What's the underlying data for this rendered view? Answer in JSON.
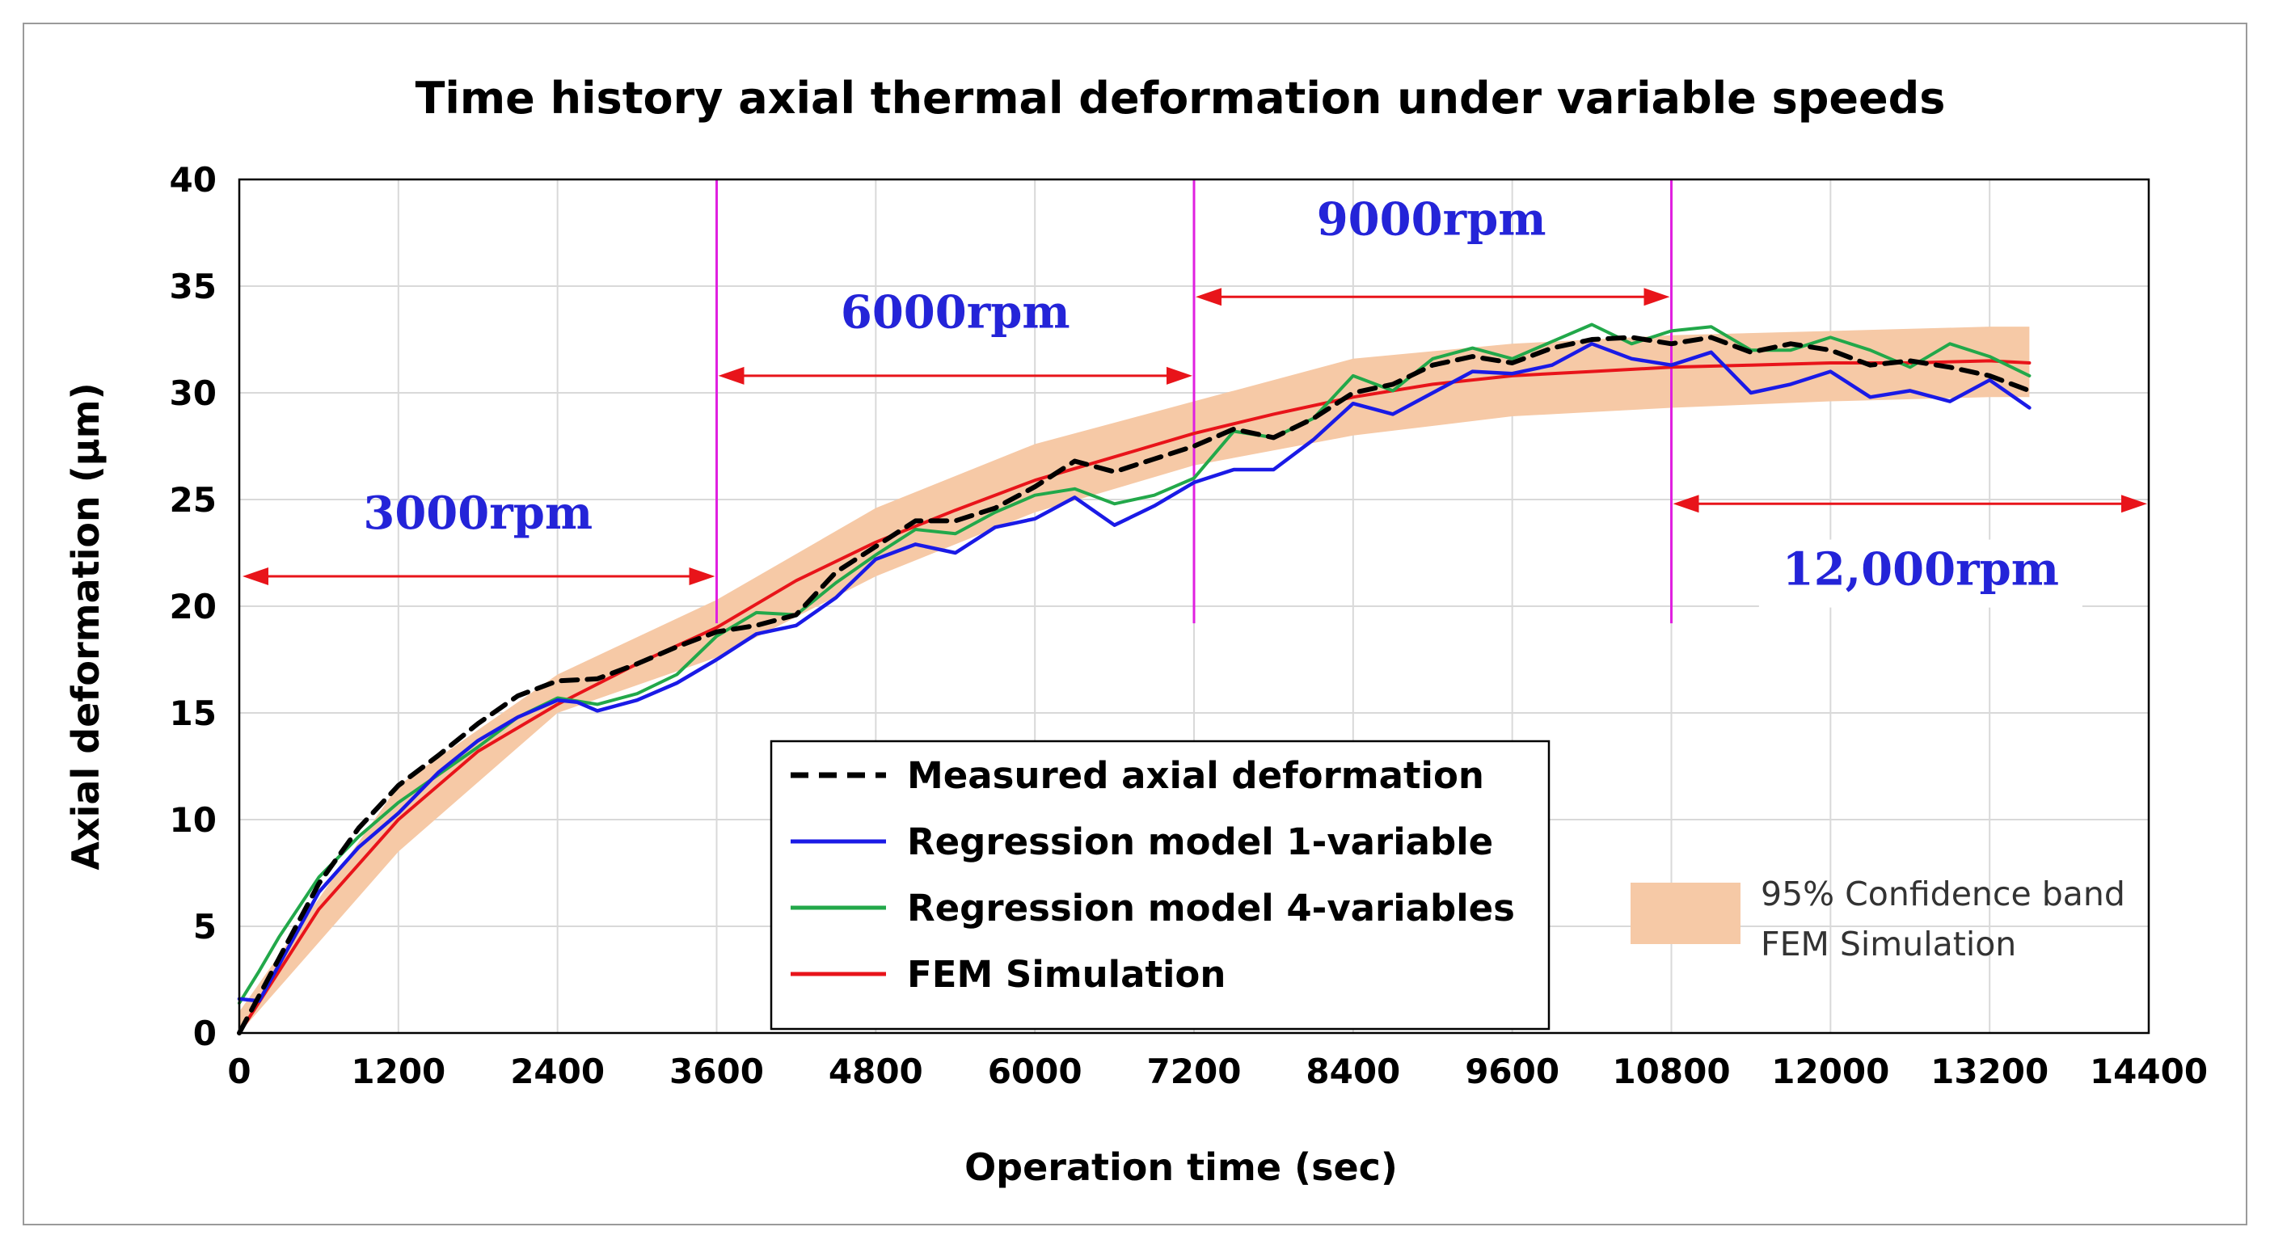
{
  "chart_data": {
    "type": "line",
    "title": "Time history axial thermal deformation under variable speeds",
    "xlabel": "Operation time (sec)",
    "ylabel": "Axial deformation (µm)",
    "xlim": [
      0,
      14400
    ],
    "ylim": [
      0,
      40
    ],
    "xticks": [
      0,
      1200,
      2400,
      3600,
      4800,
      6000,
      7200,
      8400,
      9600,
      10800,
      12000,
      13200,
      14400
    ],
    "yticks": [
      0,
      5,
      10,
      15,
      20,
      25,
      30,
      35,
      40
    ],
    "grid": true,
    "colors": {
      "measured": "#000000",
      "reg1": "#1a1ae6",
      "reg4": "#22a84a",
      "fem": "#e8141a",
      "band": "#f6c9a6",
      "divider": "#e020e0",
      "arrow": "#e8141a",
      "rpm_text": "#2424d8"
    },
    "speed_segments": [
      {
        "label": "3000rpm",
        "start": 0,
        "end": 3600
      },
      {
        "label": "6000rpm",
        "start": 3600,
        "end": 7200
      },
      {
        "label": "9000rpm",
        "start": 7200,
        "end": 10800
      },
      {
        "label": "12,000rpm",
        "start": 10800,
        "end": 14400
      }
    ],
    "dividers": [
      3600,
      7200,
      10800
    ],
    "confidence_band": {
      "name_line1": "95% Confidence band",
      "name_line2": "FEM Simulation",
      "x": [
        0,
        1200,
        2400,
        3600,
        4800,
        6000,
        7200,
        8400,
        9600,
        10800,
        12000,
        13200,
        13500
      ],
      "lower": [
        0,
        8.5,
        15.0,
        17.6,
        21.4,
        24.4,
        26.6,
        28.0,
        28.9,
        29.3,
        29.6,
        29.8,
        29.8
      ],
      "upper": [
        1.0,
        11.6,
        16.8,
        20.3,
        24.6,
        27.6,
        29.6,
        31.6,
        32.3,
        32.7,
        32.9,
        33.1,
        33.1
      ]
    },
    "series": [
      {
        "name": "Measured axial deformation",
        "key": "measured",
        "style": "dashed",
        "x": [
          0,
          300,
          600,
          900,
          1200,
          1500,
          1800,
          2100,
          2400,
          2700,
          3000,
          3300,
          3600,
          3900,
          4200,
          4500,
          4800,
          5100,
          5400,
          5700,
          6000,
          6300,
          6600,
          6900,
          7200,
          7500,
          7800,
          8100,
          8400,
          8700,
          9000,
          9300,
          9600,
          9900,
          10200,
          10500,
          10800,
          11100,
          11400,
          11700,
          12000,
          12300,
          12600,
          12900,
          13200,
          13500
        ],
        "y": [
          0.0,
          3.5,
          7.0,
          9.6,
          11.6,
          13.0,
          14.5,
          15.8,
          16.5,
          16.6,
          17.3,
          18.1,
          18.8,
          19.1,
          19.6,
          21.6,
          22.8,
          24.0,
          24.0,
          24.6,
          25.6,
          26.8,
          26.3,
          26.9,
          27.5,
          28.3,
          27.9,
          28.8,
          30.0,
          30.4,
          31.3,
          31.7,
          31.4,
          32.1,
          32.5,
          32.6,
          32.3,
          32.6,
          31.9,
          32.3,
          32.0,
          31.3,
          31.5,
          31.2,
          30.8,
          30.1
        ]
      },
      {
        "name": "Regression model 1-variable",
        "key": "reg1",
        "style": "solid",
        "x": [
          0,
          150,
          300,
          600,
          900,
          1200,
          1500,
          1800,
          2100,
          2400,
          2550,
          2700,
          3000,
          3300,
          3600,
          3900,
          4200,
          4500,
          4800,
          5100,
          5400,
          5700,
          6000,
          6300,
          6600,
          6900,
          7200,
          7500,
          7800,
          8100,
          8400,
          8700,
          9000,
          9300,
          9600,
          9900,
          10200,
          10500,
          10800,
          11100,
          11400,
          11700,
          12000,
          12300,
          12600,
          12900,
          13200,
          13500
        ],
        "y": [
          1.6,
          1.5,
          3.2,
          6.6,
          8.7,
          10.3,
          12.2,
          13.7,
          14.8,
          15.6,
          15.5,
          15.1,
          15.6,
          16.4,
          17.5,
          18.7,
          19.1,
          20.4,
          22.2,
          22.9,
          22.5,
          23.7,
          24.1,
          25.1,
          23.8,
          24.7,
          25.8,
          26.4,
          26.4,
          27.8,
          29.5,
          29.0,
          30.0,
          31.0,
          30.9,
          31.3,
          32.3,
          31.6,
          31.3,
          31.9,
          30.0,
          30.4,
          31.0,
          29.8,
          30.1,
          29.6,
          30.6,
          29.3
        ]
      },
      {
        "name": "Regression model 4-variables",
        "key": "reg4",
        "style": "solid",
        "x": [
          0,
          150,
          300,
          600,
          900,
          1200,
          1500,
          1800,
          2100,
          2400,
          2700,
          3000,
          3300,
          3600,
          3900,
          4200,
          4500,
          4800,
          5100,
          5400,
          5700,
          6000,
          6300,
          6600,
          6900,
          7200,
          7500,
          7800,
          8100,
          8400,
          8700,
          9000,
          9300,
          9600,
          9900,
          10200,
          10500,
          10800,
          11100,
          11400,
          11700,
          12000,
          12300,
          12600,
          12900,
          13200,
          13500
        ],
        "y": [
          1.4,
          2.9,
          4.5,
          7.3,
          9.2,
          10.8,
          12.1,
          13.4,
          14.8,
          15.7,
          15.4,
          15.9,
          16.8,
          18.6,
          19.7,
          19.6,
          21.1,
          22.4,
          23.6,
          23.4,
          24.4,
          25.2,
          25.5,
          24.8,
          25.2,
          26.0,
          28.2,
          27.9,
          28.8,
          30.8,
          30.1,
          31.6,
          32.1,
          31.6,
          32.4,
          33.2,
          32.3,
          32.9,
          33.1,
          32.0,
          32.0,
          32.6,
          32.0,
          31.2,
          32.3,
          31.7,
          30.8
        ]
      },
      {
        "name": "FEM Simulation",
        "key": "fem",
        "style": "solid",
        "x": [
          0,
          600,
          1200,
          1800,
          2400,
          3000,
          3600,
          4200,
          4800,
          5400,
          6000,
          6600,
          7200,
          7800,
          8400,
          9000,
          9600,
          10200,
          10800,
          11400,
          12000,
          12600,
          13200,
          13500
        ],
        "y": [
          0.0,
          5.8,
          10.0,
          13.2,
          15.4,
          17.3,
          19.0,
          21.2,
          23.0,
          24.5,
          25.9,
          27.0,
          28.1,
          29.0,
          29.8,
          30.4,
          30.8,
          31.0,
          31.2,
          31.3,
          31.4,
          31.4,
          31.5,
          31.4
        ]
      }
    ]
  }
}
